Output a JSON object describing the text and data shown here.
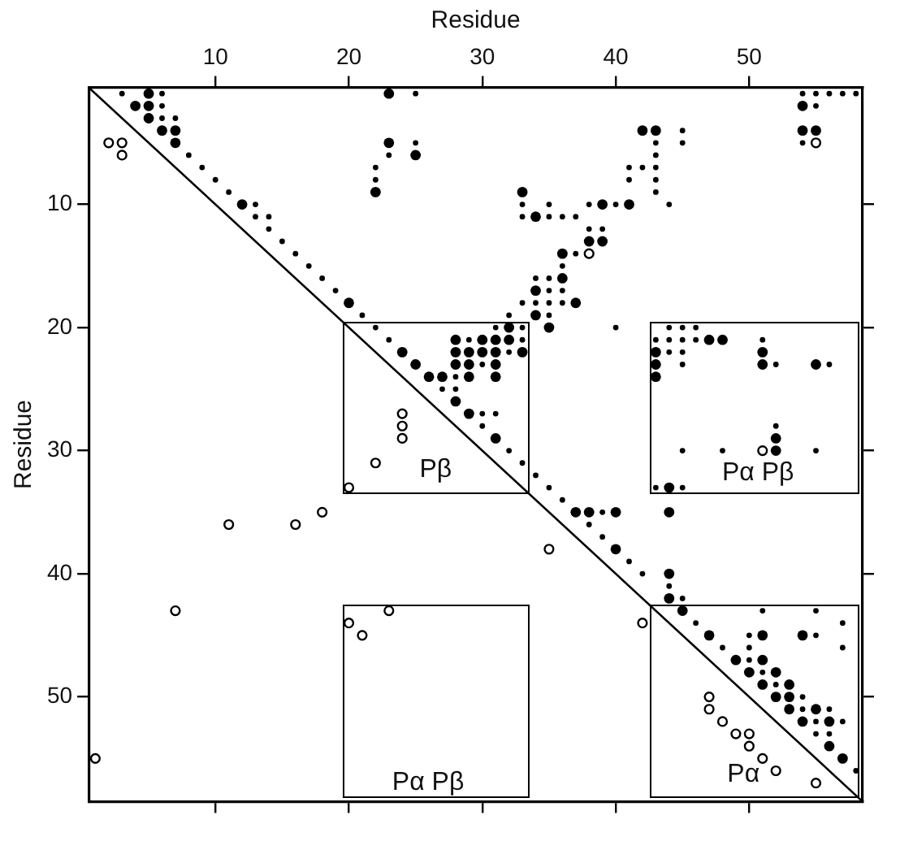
{
  "chart_data": {
    "type": "scatter",
    "xlabel": "Residue",
    "ylabel": "Residue",
    "xlim": [
      0.5,
      58.5
    ],
    "xticks": [
      10,
      20,
      30,
      40,
      50
    ],
    "ylim": [
      58.5,
      0.5
    ],
    "yticks": [
      10,
      20,
      30,
      40,
      50
    ],
    "grid": false,
    "legend": false,
    "marker": "circle",
    "series": [
      {
        "color": "#000000",
        "x": [
          5,
          4,
          5,
          5,
          6,
          7,
          7,
          12,
          20,
          23,
          23,
          25,
          22,
          54,
          54,
          55,
          42,
          43,
          33,
          39,
          41,
          34,
          38,
          39,
          36,
          36,
          34,
          37,
          34,
          35,
          32,
          28,
          30,
          31,
          32,
          24,
          28,
          29,
          30,
          31,
          33,
          25,
          28,
          29,
          31,
          26,
          27,
          29,
          31,
          28,
          29,
          31,
          37,
          38,
          40,
          40,
          44,
          44,
          44,
          44,
          47,
          48,
          43,
          51,
          43,
          51,
          55,
          43,
          52,
          52,
          45,
          47,
          51,
          54,
          49,
          51,
          50,
          52,
          51,
          53,
          52,
          53,
          53,
          55,
          54,
          56,
          56,
          57
        ],
        "values": [
          1,
          2,
          2,
          3,
          4,
          4,
          5,
          10,
          18,
          1,
          5,
          6,
          9,
          2,
          4,
          4,
          4,
          4,
          9,
          10,
          10,
          11,
          13,
          13,
          14,
          16,
          17,
          18,
          19,
          20,
          20,
          21,
          21,
          21,
          21,
          22,
          22,
          22,
          22,
          22,
          22,
          23,
          23,
          23,
          23,
          24,
          24,
          24,
          24,
          26,
          27,
          29,
          35,
          35,
          35,
          38,
          35,
          33,
          40,
          42,
          21,
          21,
          22,
          22,
          23,
          23,
          23,
          24,
          29,
          30,
          43,
          45,
          45,
          45,
          47,
          47,
          48,
          48,
          49,
          49,
          50,
          50,
          51,
          51,
          52,
          52,
          54,
          55
        ]
      },
      {
        "color": "#000000",
        "x": [
          3,
          6,
          6,
          6,
          7,
          8,
          9,
          10,
          11,
          13,
          13,
          14,
          14,
          15,
          16,
          17,
          18,
          19,
          21,
          25,
          23,
          25,
          22,
          22,
          54,
          55,
          56,
          57,
          58,
          55,
          54,
          45,
          45,
          43,
          43,
          41,
          42,
          43,
          41,
          43,
          43,
          33,
          35,
          38,
          40,
          44,
          33,
          35,
          36,
          37,
          38,
          39,
          37,
          36,
          34,
          35,
          35,
          36,
          33,
          34,
          35,
          36,
          32,
          35,
          40,
          22,
          31,
          33,
          23,
          29,
          33,
          32,
          30,
          28,
          27,
          28,
          30,
          31,
          30,
          32,
          33,
          34,
          35,
          36,
          39,
          38,
          39,
          41,
          42,
          44,
          45,
          44,
          45,
          46,
          43,
          44,
          45,
          46,
          51,
          44,
          45,
          45,
          52,
          56,
          52,
          45,
          48,
          55,
          43,
          45,
          51,
          55,
          46,
          57,
          50,
          55,
          48,
          50,
          57,
          50,
          51,
          52,
          54,
          54,
          56,
          55,
          57,
          55,
          56,
          58
        ],
        "values": [
          1,
          1,
          2,
          3,
          3,
          6,
          7,
          8,
          9,
          10,
          11,
          11,
          12,
          13,
          14,
          15,
          16,
          17,
          19,
          1,
          6,
          5,
          7,
          8,
          1,
          1,
          1,
          1,
          1,
          2,
          5,
          4,
          5,
          5,
          6,
          7,
          7,
          7,
          8,
          8,
          9,
          10,
          10,
          10,
          10,
          10,
          11,
          11,
          11,
          11,
          12,
          12,
          14,
          15,
          16,
          16,
          17,
          17,
          18,
          18,
          18,
          18,
          19,
          19,
          20,
          20,
          20,
          20,
          21,
          21,
          21,
          22,
          23,
          24,
          25,
          25,
          27,
          27,
          28,
          30,
          31,
          32,
          33,
          34,
          35,
          36,
          37,
          39,
          40,
          41,
          42,
          20,
          20,
          20,
          21,
          21,
          21,
          21,
          21,
          22,
          22,
          23,
          23,
          23,
          28,
          30,
          30,
          30,
          33,
          33,
          43,
          43,
          44,
          44,
          45,
          45,
          46,
          46,
          46,
          47,
          48,
          49,
          50,
          51,
          51,
          52,
          52,
          53,
          53,
          56
        ]
      },
      {
        "color": "#000000",
        "x": [
          2,
          3,
          3,
          55,
          38,
          51,
          35,
          24,
          24,
          24,
          22,
          20,
          18,
          16,
          11,
          7,
          20,
          21,
          23,
          1,
          42,
          47,
          47,
          48,
          49,
          50,
          50,
          51,
          52,
          55
        ],
        "values": [
          5,
          5,
          6,
          5,
          14,
          30,
          38,
          27,
          28,
          29,
          31,
          33,
          35,
          36,
          36,
          43,
          44,
          45,
          43,
          55,
          44,
          50,
          51,
          52,
          53,
          53,
          54,
          55,
          56,
          57
        ]
      },
      {
        "type": "line",
        "color": "#000000",
        "marker": "none",
        "x": [
          0.5,
          58.5
        ],
        "values": [
          0.5,
          58.5
        ]
      }
    ],
    "annotations": [
      "Pβ",
      "Pα Pβ",
      "Pα Pβ",
      "Pα"
    ]
  }
}
